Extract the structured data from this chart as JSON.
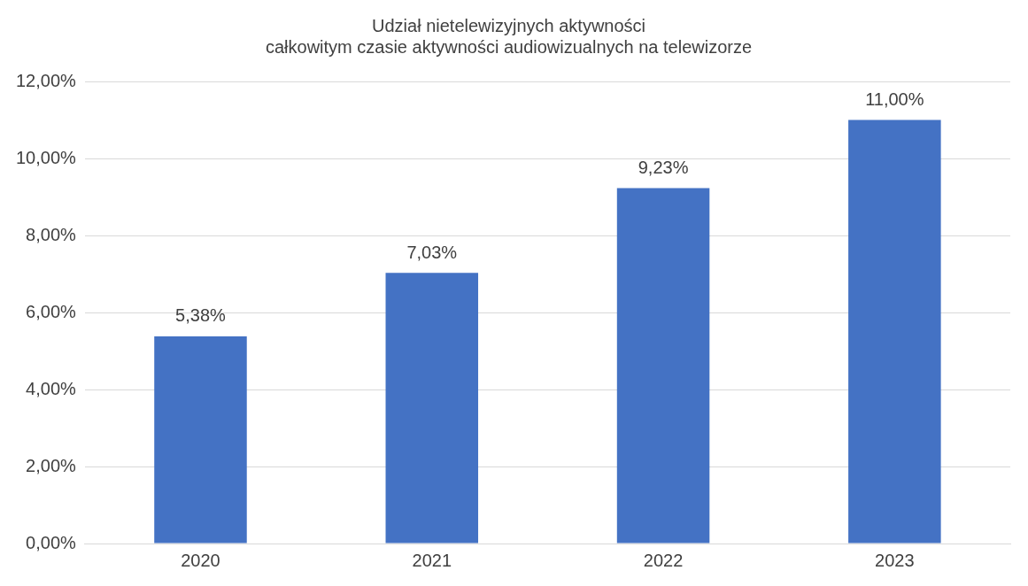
{
  "chart_data": {
    "type": "bar",
    "title": "Udział nietelewizyjnych aktywności\ncałkowitym czasie aktywności audiowizualnych na telewizorze",
    "categories": [
      "2020",
      "2021",
      "2022",
      "2023"
    ],
    "values": [
      5.38,
      7.03,
      9.23,
      11.0
    ],
    "value_labels": [
      "5,38%",
      "7,03%",
      "9,23%",
      "11,00%"
    ],
    "color": "#4472c4",
    "ylim": [
      0,
      12
    ],
    "yticks": [
      {
        "value": 0,
        "label": "0,00%"
      },
      {
        "value": 2,
        "label": "2,00%"
      },
      {
        "value": 4,
        "label": "4,00%"
      },
      {
        "value": 6,
        "label": "6,00%"
      },
      {
        "value": 8,
        "label": "8,00%"
      },
      {
        "value": 10,
        "label": "10,00%"
      },
      {
        "value": 12,
        "label": "12,00%"
      }
    ],
    "grid": "y"
  }
}
